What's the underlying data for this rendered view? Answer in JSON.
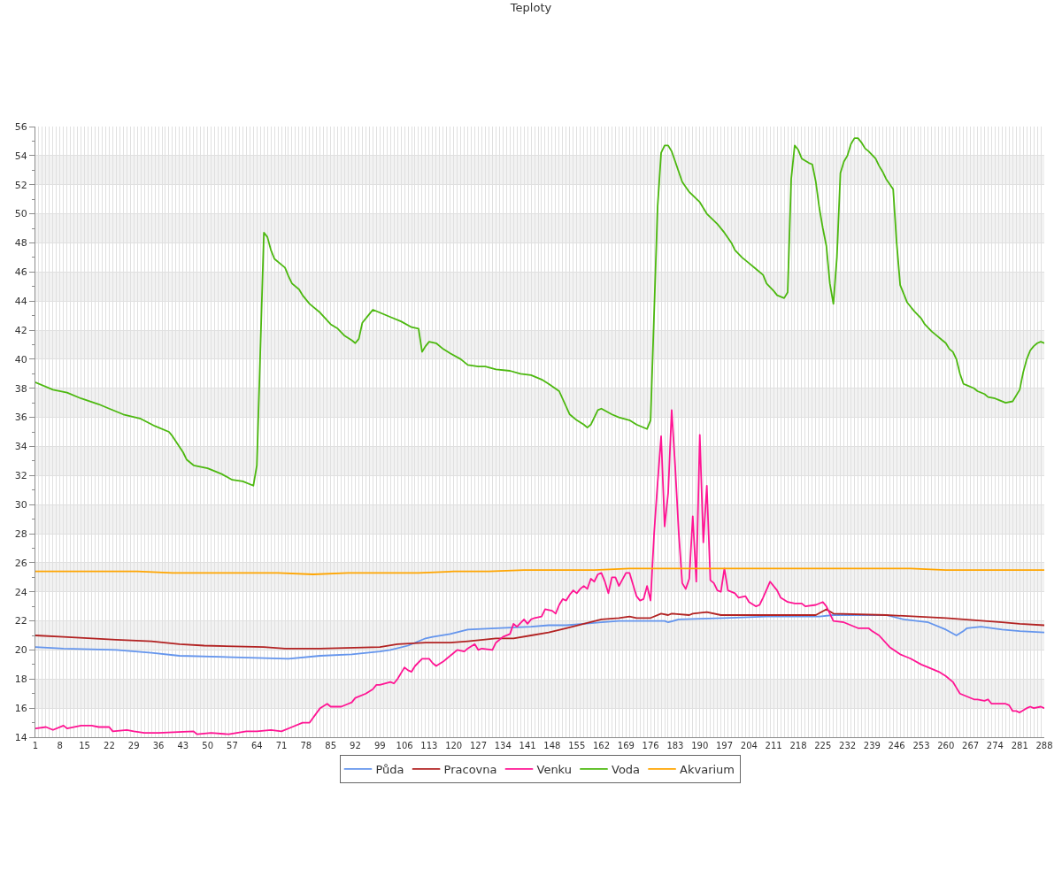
{
  "chart_data": {
    "type": "line",
    "title": "Teploty",
    "xlim": [
      1,
      288
    ],
    "xticks": [
      1,
      {
        "value": 2,
        "label": null
      },
      {
        "value": 3,
        "label": null
      },
      {
        "value": 4,
        "label": null
      },
      {
        "value": 5,
        "label": null
      },
      {
        "value": 6,
        "label": null
      },
      {
        "value": 7,
        "label": null
      },
      8,
      {
        "value": 9,
        "label": null
      },
      {
        "value": 10,
        "label": null
      },
      {
        "value": 11,
        "label": null
      },
      {
        "value": 12,
        "label": null
      },
      {
        "value": 13,
        "label": null
      },
      {
        "value": 14,
        "label": null
      },
      15,
      {
        "value": 16,
        "label": null
      },
      {
        "value": 17,
        "label": null
      },
      {
        "value": 18,
        "label": null
      },
      {
        "value": 19,
        "label": null
      },
      {
        "value": 20,
        "label": null
      },
      {
        "value": 21,
        "label": null
      },
      22,
      {
        "value": 23,
        "label": null
      },
      {
        "value": 24,
        "label": null
      },
      {
        "value": 25,
        "label": null
      },
      {
        "value": 26,
        "label": null
      },
      {
        "value": 27,
        "label": null
      },
      {
        "value": 28,
        "label": null
      },
      29,
      {
        "value": 30,
        "label": null
      },
      {
        "value": 31,
        "label": null
      },
      {
        "value": 32,
        "label": null
      },
      {
        "value": 33,
        "label": null
      },
      {
        "value": 34,
        "label": null
      },
      {
        "value": 35,
        "label": null
      },
      36,
      {
        "value": 37,
        "label": null
      },
      {
        "value": 38,
        "label": null
      },
      {
        "value": 39,
        "label": null
      },
      {
        "value": 40,
        "label": null
      },
      {
        "value": 41,
        "label": null
      },
      {
        "value": 42,
        "label": null
      },
      43,
      {
        "value": 44,
        "label": null
      },
      {
        "value": 45,
        "label": null
      },
      {
        "value": 46,
        "label": null
      },
      {
        "value": 47,
        "label": null
      },
      {
        "value": 48,
        "label": null
      },
      {
        "value": 49,
        "label": null
      },
      50,
      {
        "value": 51,
        "label": null
      },
      {
        "value": 52,
        "label": null
      },
      {
        "value": 53,
        "label": null
      },
      {
        "value": 54,
        "label": null
      },
      {
        "value": 55,
        "label": null
      },
      {
        "value": 56,
        "label": null
      },
      57,
      {
        "value": 58,
        "label": null
      },
      {
        "value": 59,
        "label": null
      },
      {
        "value": 60,
        "label": null
      },
      {
        "value": 61,
        "label": null
      },
      {
        "value": 62,
        "label": null
      },
      {
        "value": 63,
        "label": null
      },
      64,
      {
        "value": 65,
        "label": null
      },
      {
        "value": 66,
        "label": null
      },
      {
        "value": 67,
        "label": null
      },
      {
        "value": 68,
        "label": null
      },
      {
        "value": 69,
        "label": null
      },
      {
        "value": 70,
        "label": null
      },
      71,
      {
        "value": 72,
        "label": null
      },
      {
        "value": 73,
        "label": null
      },
      {
        "value": 74,
        "label": null
      },
      {
        "value": 75,
        "label": null
      },
      {
        "value": 76,
        "label": null
      },
      {
        "value": 77,
        "label": null
      },
      78,
      {
        "value": 79,
        "label": null
      },
      {
        "value": 80,
        "label": null
      },
      {
        "value": 81,
        "label": null
      },
      {
        "value": 82,
        "label": null
      },
      {
        "value": 83,
        "label": null
      },
      {
        "value": 84,
        "label": null
      },
      85,
      {
        "value": 86,
        "label": null
      },
      {
        "value": 87,
        "label": null
      },
      {
        "value": 88,
        "label": null
      },
      {
        "value": 89,
        "label": null
      },
      {
        "value": 90,
        "label": null
      },
      {
        "value": 91,
        "label": null
      },
      92,
      {
        "value": 93,
        "label": null
      },
      {
        "value": 94,
        "label": null
      },
      {
        "value": 95,
        "label": null
      },
      {
        "value": 96,
        "label": null
      },
      {
        "value": 97,
        "label": null
      },
      {
        "value": 98,
        "label": null
      },
      99,
      {
        "value": 100,
        "label": null
      },
      {
        "value": 101,
        "label": null
      },
      {
        "value": 102,
        "label": null
      },
      {
        "value": 103,
        "label": null
      },
      {
        "value": 104,
        "label": null
      },
      {
        "value": 105,
        "label": null
      },
      106,
      {
        "value": 107,
        "label": null
      },
      {
        "value": 108,
        "label": null
      },
      {
        "value": 109,
        "label": null
      },
      {
        "value": 110,
        "label": null
      },
      {
        "value": 111,
        "label": null
      },
      {
        "value": 112,
        "label": null
      },
      113,
      {
        "value": 114,
        "label": null
      },
      {
        "value": 115,
        "label": null
      },
      {
        "value": 116,
        "label": null
      },
      {
        "value": 117,
        "label": null
      },
      {
        "value": 118,
        "label": null
      },
      {
        "value": 119,
        "label": null
      },
      120,
      {
        "value": 121,
        "label": null
      },
      {
        "value": 122,
        "label": null
      },
      {
        "value": 123,
        "label": null
      },
      {
        "value": 124,
        "label": null
      },
      {
        "value": 125,
        "label": null
      },
      {
        "value": 126,
        "label": null
      },
      127,
      {
        "value": 128,
        "label": null
      },
      {
        "value": 129,
        "label": null
      },
      {
        "value": 130,
        "label": null
      },
      {
        "value": 131,
        "label": null
      },
      {
        "value": 132,
        "label": null
      },
      {
        "value": 133,
        "label": null
      },
      134,
      {
        "value": 135,
        "label": null
      },
      {
        "value": 136,
        "label": null
      },
      {
        "value": 137,
        "label": null
      },
      {
        "value": 138,
        "label": null
      },
      {
        "value": 139,
        "label": null
      },
      {
        "value": 140,
        "label": null
      },
      141,
      {
        "value": 142,
        "label": null
      },
      {
        "value": 143,
        "label": null
      },
      {
        "value": 144,
        "label": null
      },
      {
        "value": 145,
        "label": null
      },
      {
        "value": 146,
        "label": null
      },
      {
        "value": 147,
        "label": null
      },
      148,
      {
        "value": 149,
        "label": null
      },
      {
        "value": 150,
        "label": null
      },
      {
        "value": 151,
        "label": null
      },
      {
        "value": 152,
        "label": null
      },
      {
        "value": 153,
        "label": null
      },
      {
        "value": 154,
        "label": null
      },
      155,
      {
        "value": 156,
        "label": null
      },
      {
        "value": 157,
        "label": null
      },
      {
        "value": 158,
        "label": null
      },
      {
        "value": 159,
        "label": null
      },
      {
        "value": 160,
        "label": null
      },
      {
        "value": 161,
        "label": null
      },
      162,
      {
        "value": 163,
        "label": null
      },
      {
        "value": 164,
        "label": null
      },
      {
        "value": 165,
        "label": null
      },
      {
        "value": 166,
        "label": null
      },
      {
        "value": 167,
        "label": null
      },
      {
        "value": 168,
        "label": null
      },
      169,
      {
        "value": 170,
        "label": null
      },
      {
        "value": 171,
        "label": null
      },
      {
        "value": 172,
        "label": null
      },
      {
        "value": 173,
        "label": null
      },
      {
        "value": 174,
        "label": null
      },
      {
        "value": 175,
        "label": null
      },
      176,
      {
        "value": 177,
        "label": null
      },
      {
        "value": 178,
        "label": null
      },
      {
        "value": 179,
        "label": null
      },
      {
        "value": 180,
        "label": null
      },
      {
        "value": 181,
        "label": null
      },
      {
        "value": 182,
        "label": null
      },
      183,
      {
        "value": 184,
        "label": null
      },
      {
        "value": 185,
        "label": null
      },
      {
        "value": 186,
        "label": null
      },
      {
        "value": 187,
        "label": null
      },
      {
        "value": 188,
        "label": null
      },
      {
        "value": 189,
        "label": null
      },
      190,
      {
        "value": 191,
        "label": null
      },
      {
        "value": 192,
        "label": null
      },
      {
        "value": 193,
        "label": null
      },
      {
        "value": 194,
        "label": null
      },
      {
        "value": 195,
        "label": null
      },
      {
        "value": 196,
        "label": null
      },
      197,
      {
        "value": 198,
        "label": null
      },
      {
        "value": 199,
        "label": null
      },
      {
        "value": 200,
        "label": null
      },
      {
        "value": 201,
        "label": null
      },
      {
        "value": 202,
        "label": null
      },
      {
        "value": 203,
        "label": null
      },
      204,
      {
        "value": 205,
        "label": null
      },
      {
        "value": 206,
        "label": null
      },
      {
        "value": 207,
        "label": null
      },
      {
        "value": 208,
        "label": null
      },
      {
        "value": 209,
        "label": null
      },
      {
        "value": 210,
        "label": null
      },
      211,
      {
        "value": 212,
        "label": null
      },
      {
        "value": 213,
        "label": null
      },
      {
        "value": 214,
        "label": null
      },
      {
        "value": 215,
        "label": null
      },
      {
        "value": 216,
        "label": null
      },
      {
        "value": 217,
        "label": null
      },
      218,
      {
        "value": 219,
        "label": null
      },
      {
        "value": 220,
        "label": null
      },
      {
        "value": 221,
        "label": null
      },
      {
        "value": 222,
        "label": null
      },
      {
        "value": 223,
        "label": null
      },
      {
        "value": 224,
        "label": null
      },
      225,
      {
        "value": 226,
        "label": null
      },
      {
        "value": 227,
        "label": null
      },
      {
        "value": 228,
        "label": null
      },
      {
        "value": 229,
        "label": null
      },
      {
        "value": 230,
        "label": null
      },
      {
        "value": 231,
        "label": null
      },
      232,
      {
        "value": 233,
        "label": null
      },
      {
        "value": 234,
        "label": null
      },
      {
        "value": 235,
        "label": null
      },
      {
        "value": 236,
        "label": null
      },
      {
        "value": 237,
        "label": null
      },
      {
        "value": 238,
        "label": null
      },
      239,
      {
        "value": 240,
        "label": null
      },
      {
        "value": 241,
        "label": null
      },
      {
        "value": 242,
        "label": null
      },
      {
        "value": 243,
        "label": null
      },
      {
        "value": 244,
        "label": null
      },
      {
        "value": 245,
        "label": null
      },
      246,
      {
        "value": 247,
        "label": null
      },
      {
        "value": 248,
        "label": null
      },
      {
        "value": 249,
        "label": null
      },
      {
        "value": 250,
        "label": null
      },
      {
        "value": 251,
        "label": null
      },
      {
        "value": 252,
        "label": null
      },
      253,
      {
        "value": 254,
        "label": null
      },
      {
        "value": 255,
        "label": null
      },
      {
        "value": 256,
        "label": null
      },
      {
        "value": 257,
        "label": null
      },
      {
        "value": 258,
        "label": null
      },
      {
        "value": 259,
        "label": null
      },
      260,
      {
        "value": 261,
        "label": null
      },
      {
        "value": 262,
        "label": null
      },
      {
        "value": 263,
        "label": null
      },
      {
        "value": 264,
        "label": null
      },
      {
        "value": 265,
        "label": null
      },
      {
        "value": 266,
        "label": null
      },
      267,
      {
        "value": 268,
        "label": null
      },
      {
        "value": 269,
        "label": null
      },
      {
        "value": 270,
        "label": null
      },
      {
        "value": 271,
        "label": null
      },
      {
        "value": 272,
        "label": null
      },
      {
        "value": 273,
        "label": null
      },
      274,
      {
        "value": 275,
        "label": null
      },
      {
        "value": 276,
        "label": null
      },
      {
        "value": 277,
        "label": null
      },
      {
        "value": 278,
        "label": null
      },
      {
        "value": 279,
        "label": null
      },
      {
        "value": 280,
        "label": null
      },
      281,
      {
        "value": 282,
        "label": null
      },
      {
        "value": 283,
        "label": null
      },
      {
        "value": 284,
        "label": null
      },
      {
        "value": 285,
        "label": null
      },
      {
        "value": 286,
        "label": null
      },
      {
        "value": 287,
        "label": null
      },
      288
    ],
    "ylim": [
      14,
      56
    ],
    "yticks": [
      14,
      {
        "value": 15,
        "label": null
      },
      16,
      {
        "value": 17,
        "label": null
      },
      18,
      {
        "value": 19,
        "label": null
      },
      20,
      {
        "value": 21,
        "label": null
      },
      22,
      {
        "value": 23,
        "label": null
      },
      24,
      {
        "value": 25,
        "label": null
      },
      26,
      {
        "value": 27,
        "label": null
      },
      28,
      {
        "value": 29,
        "label": null
      },
      30,
      {
        "value": 31,
        "label": null
      },
      32,
      {
        "value": 33,
        "label": null
      },
      34,
      {
        "value": 35,
        "label": null
      },
      36,
      {
        "value": 37,
        "label": null
      },
      38,
      {
        "value": 39,
        "label": null
      },
      40,
      {
        "value": 41,
        "label": null
      },
      42,
      {
        "value": 43,
        "label": null
      },
      44,
      {
        "value": 45,
        "label": null
      },
      46,
      {
        "value": 47,
        "label": null
      },
      48,
      {
        "value": 49,
        "label": null
      },
      50,
      {
        "value": 51,
        "label": null
      },
      52,
      {
        "value": 53,
        "label": null
      },
      54,
      {
        "value": 55,
        "label": null
      },
      56
    ],
    "grid": true,
    "legend": "bottom",
    "bands": [
      {
        "axis": "y",
        "from": 16,
        "to": 18,
        "color": "#f2f2f2"
      },
      {
        "axis": "y",
        "from": 20,
        "to": 22,
        "color": "#f2f2f2"
      },
      {
        "axis": "y",
        "from": 24,
        "to": 26,
        "color": "#f2f2f2"
      },
      {
        "axis": "y",
        "from": 28,
        "to": 30,
        "color": "#f2f2f2"
      },
      {
        "axis": "y",
        "from": 32,
        "to": 34,
        "color": "#f2f2f2"
      },
      {
        "axis": "y",
        "from": 36,
        "to": 38,
        "color": "#f2f2f2"
      },
      {
        "axis": "y",
        "from": 40,
        "to": 42,
        "color": "#f2f2f2"
      },
      {
        "axis": "y",
        "from": 44,
        "to": 46,
        "color": "#f2f2f2"
      },
      {
        "axis": "y",
        "from": 48,
        "to": 50,
        "color": "#f2f2f2"
      },
      {
        "axis": "y",
        "from": 52,
        "to": 54,
        "color": "#f2f2f2"
      }
    ],
    "series": [
      {
        "name": "Půda",
        "color": "#6495ed",
        "x": [
          1,
          9,
          24,
          34,
          42,
          57,
          73,
          82,
          91,
          99,
          102,
          107,
          109,
          112,
          114,
          119,
          124,
          132,
          142,
          147,
          152,
          157,
          162,
          167,
          180,
          181,
          184,
          197,
          209,
          224,
          228,
          243,
          248,
          255,
          260,
          263,
          265,
          266,
          270,
          276,
          281,
          288
        ],
        "values": [
          20.2,
          20.1,
          20.0,
          19.8,
          19.6,
          19.5,
          19.4,
          19.6,
          19.7,
          19.9,
          20.0,
          20.3,
          20.5,
          20.8,
          20.9,
          21.1,
          21.4,
          21.5,
          21.6,
          21.7,
          21.7,
          21.8,
          21.9,
          22.0,
          22.0,
          21.9,
          22.1,
          22.2,
          22.3,
          22.3,
          22.4,
          22.4,
          22.1,
          21.9,
          21.4,
          21.0,
          21.3,
          21.5,
          21.6,
          21.4,
          21.3,
          21.2
        ]
      },
      {
        "name": "Pracovna",
        "color": "#b22222",
        "x": [
          1,
          9,
          24,
          34,
          42,
          49,
          66,
          72,
          82,
          99,
          104,
          112,
          119,
          124,
          132,
          137,
          142,
          147,
          152,
          157,
          162,
          167,
          170,
          172,
          176,
          179,
          181,
          182,
          187,
          188,
          192,
          196,
          209,
          223,
          226,
          228,
          243,
          260,
          276,
          281,
          288
        ],
        "values": [
          21.0,
          20.9,
          20.7,
          20.6,
          20.4,
          20.3,
          20.2,
          20.1,
          20.1,
          20.2,
          20.4,
          20.5,
          20.5,
          20.6,
          20.8,
          20.8,
          21.0,
          21.2,
          21.5,
          21.8,
          22.1,
          22.2,
          22.3,
          22.2,
          22.2,
          22.5,
          22.4,
          22.5,
          22.4,
          22.5,
          22.6,
          22.4,
          22.4,
          22.4,
          22.8,
          22.5,
          22.4,
          22.2,
          21.9,
          21.8,
          21.7
        ]
      },
      {
        "name": "Venku",
        "color": "#ff1493",
        "x": [
          1,
          4,
          6,
          9,
          10,
          14,
          17,
          19,
          22,
          23,
          27,
          29,
          32,
          36,
          46,
          47,
          51,
          56,
          61,
          64,
          68,
          71,
          74,
          77,
          79,
          82,
          84,
          85,
          88,
          90,
          91,
          92,
          95,
          97,
          98,
          99,
          102,
          103,
          104,
          106,
          107,
          108,
          109,
          111,
          113,
          114,
          115,
          117,
          118,
          120,
          121,
          123,
          124,
          126,
          127,
          128,
          131,
          132,
          134,
          136,
          137,
          138,
          140,
          141,
          142,
          143,
          145,
          146,
          148,
          149,
          150,
          151,
          152,
          153,
          154,
          155,
          156,
          157,
          158,
          159,
          160,
          161,
          162,
          163,
          164,
          165,
          166,
          167,
          169,
          170,
          172,
          173,
          174,
          175,
          176,
          177,
          178,
          179,
          180,
          181,
          182,
          183,
          184,
          185,
          186,
          187,
          188,
          189,
          190,
          191,
          192,
          193,
          194,
          195,
          196,
          197,
          198,
          200,
          201,
          203,
          204,
          206,
          207,
          208,
          210,
          212,
          213,
          215,
          217,
          219,
          220,
          223,
          225,
          226,
          228,
          231,
          233,
          235,
          238,
          239,
          241,
          244,
          247,
          248,
          250,
          253,
          255,
          258,
          260,
          262,
          263,
          264,
          266,
          268,
          269,
          271,
          272,
          273,
          275,
          277,
          278,
          279,
          280,
          281,
          283,
          284,
          285,
          287,
          288
        ],
        "values": [
          14.6,
          14.7,
          14.5,
          14.8,
          14.6,
          14.8,
          14.8,
          14.7,
          14.7,
          14.4,
          14.5,
          14.4,
          14.3,
          14.3,
          14.4,
          14.2,
          14.3,
          14.2,
          14.4,
          14.4,
          14.5,
          14.4,
          14.7,
          15.0,
          15.0,
          16.0,
          16.3,
          16.1,
          16.1,
          16.3,
          16.4,
          16.7,
          17.0,
          17.3,
          17.6,
          17.6,
          17.8,
          17.7,
          18.0,
          18.8,
          18.6,
          18.5,
          18.9,
          19.4,
          19.4,
          19.1,
          18.9,
          19.2,
          19.4,
          19.8,
          20.0,
          19.9,
          20.1,
          20.4,
          20.0,
          20.1,
          20.0,
          20.5,
          20.9,
          21.1,
          21.8,
          21.6,
          22.1,
          21.8,
          22.1,
          22.2,
          22.3,
          22.8,
          22.7,
          22.5,
          23.1,
          23.5,
          23.4,
          23.8,
          24.1,
          23.9,
          24.2,
          24.4,
          24.2,
          24.9,
          24.7,
          25.2,
          25.3,
          24.7,
          23.9,
          25.0,
          25.0,
          24.4,
          25.3,
          25.3,
          23.7,
          23.4,
          23.5,
          24.4,
          23.4,
          28.0,
          31.5,
          34.7,
          28.5,
          30.8,
          36.5,
          32.6,
          28.1,
          24.6,
          24.2,
          24.9,
          29.2,
          24.7,
          34.8,
          27.4,
          31.3,
          24.8,
          24.6,
          24.1,
          24.0,
          25.6,
          24.1,
          23.9,
          23.6,
          23.7,
          23.3,
          23.0,
          23.1,
          23.6,
          24.7,
          24.1,
          23.6,
          23.3,
          23.2,
          23.2,
          23.0,
          23.1,
          23.3,
          23.0,
          22.0,
          21.9,
          21.7,
          21.5,
          21.5,
          21.3,
          21.0,
          20.2,
          19.7,
          19.6,
          19.4,
          19.0,
          18.8,
          18.5,
          18.2,
          17.8,
          17.4,
          17.0,
          16.8,
          16.6,
          16.6,
          16.5,
          16.6,
          16.3,
          16.3,
          16.3,
          16.2,
          15.8,
          15.8,
          15.7,
          16.0,
          16.1,
          16.0,
          16.1,
          16.0
        ]
      },
      {
        "name": "Voda",
        "color": "#4cb80f",
        "x": [
          1,
          6,
          10,
          14,
          19,
          22,
          26,
          31,
          35,
          39,
          40,
          43,
          44,
          46,
          50,
          54,
          57,
          60,
          63,
          64,
          66,
          67,
          68,
          69,
          71,
          72,
          73,
          74,
          76,
          77,
          79,
          82,
          85,
          87,
          89,
          91,
          92,
          93,
          94,
          96,
          97,
          99,
          102,
          105,
          108,
          110,
          111,
          112,
          113,
          115,
          117,
          119,
          122,
          124,
          127,
          129,
          132,
          136,
          139,
          142,
          145,
          147,
          150,
          153,
          155,
          157,
          158,
          159,
          161,
          162,
          165,
          167,
          170,
          172,
          175,
          176,
          178,
          179,
          180,
          181,
          182,
          184,
          185,
          187,
          190,
          192,
          195,
          197,
          199,
          200,
          202,
          204,
          206,
          208,
          209,
          211,
          212,
          214,
          215,
          216,
          217,
          218,
          219,
          221,
          222,
          223,
          224,
          225,
          226,
          227,
          228,
          229,
          230,
          231,
          232,
          233,
          234,
          235,
          236,
          237,
          238,
          240,
          241,
          242,
          243,
          245,
          246,
          247,
          248,
          249,
          250,
          251,
          253,
          254,
          256,
          257,
          259,
          260,
          261,
          262,
          263,
          264,
          265,
          266,
          268,
          269,
          271,
          272,
          274,
          275,
          277,
          279,
          281,
          282,
          283,
          284,
          285,
          286,
          287,
          288
        ],
        "values": [
          38.4,
          37.9,
          37.7,
          37.3,
          36.9,
          36.6,
          36.2,
          35.9,
          35.4,
          35.0,
          34.7,
          33.6,
          33.1,
          32.7,
          32.5,
          32.1,
          31.7,
          31.6,
          31.3,
          32.7,
          48.7,
          48.4,
          47.5,
          46.9,
          46.5,
          46.3,
          45.7,
          45.2,
          44.8,
          44.4,
          43.8,
          43.2,
          42.4,
          42.1,
          41.6,
          41.3,
          41.1,
          41.4,
          42.5,
          43.1,
          43.4,
          43.2,
          42.9,
          42.6,
          42.2,
          42.1,
          40.5,
          40.9,
          41.2,
          41.1,
          40.7,
          40.4,
          40.0,
          39.6,
          39.5,
          39.5,
          39.3,
          39.2,
          39.0,
          38.9,
          38.6,
          38.3,
          37.8,
          36.2,
          35.8,
          35.5,
          35.3,
          35.5,
          36.5,
          36.6,
          36.2,
          36.0,
          35.8,
          35.5,
          35.2,
          35.8,
          50.5,
          54.2,
          54.7,
          54.7,
          54.3,
          52.9,
          52.2,
          51.5,
          50.8,
          50.0,
          49.3,
          48.7,
          48.0,
          47.5,
          47.0,
          46.6,
          46.2,
          45.8,
          45.2,
          44.7,
          44.4,
          44.2,
          44.6,
          52.4,
          54.7,
          54.4,
          53.8,
          53.5,
          53.4,
          52.2,
          50.4,
          49.0,
          47.8,
          45.2,
          43.8,
          47.0,
          52.8,
          53.6,
          54.0,
          54.8,
          55.2,
          55.2,
          54.9,
          54.5,
          54.3,
          53.8,
          53.3,
          52.9,
          52.4,
          51.7,
          48.0,
          45.1,
          44.5,
          43.9,
          43.6,
          43.3,
          42.8,
          42.4,
          41.9,
          41.7,
          41.3,
          41.1,
          40.7,
          40.5,
          40.0,
          39.0,
          38.3,
          38.2,
          38.0,
          37.8,
          37.6,
          37.4,
          37.3,
          37.2,
          37.0,
          37.1,
          37.9,
          39.1,
          40.0,
          40.6,
          40.9,
          41.1,
          41.2,
          41.1
        ]
      },
      {
        "name": "Akvarium",
        "color": "#ffa500",
        "x": [
          1,
          10,
          20,
          30,
          40,
          50,
          60,
          70,
          80,
          90,
          100,
          110,
          120,
          130,
          140,
          150,
          160,
          170,
          180,
          190,
          200,
          210,
          220,
          230,
          240,
          250,
          260,
          270,
          280,
          288
        ],
        "values": [
          25.4,
          25.4,
          25.4,
          25.4,
          25.3,
          25.3,
          25.3,
          25.3,
          25.2,
          25.3,
          25.3,
          25.3,
          25.4,
          25.4,
          25.5,
          25.5,
          25.5,
          25.6,
          25.6,
          25.6,
          25.6,
          25.6,
          25.6,
          25.6,
          25.6,
          25.6,
          25.5,
          25.5,
          25.5,
          25.5
        ]
      }
    ]
  }
}
